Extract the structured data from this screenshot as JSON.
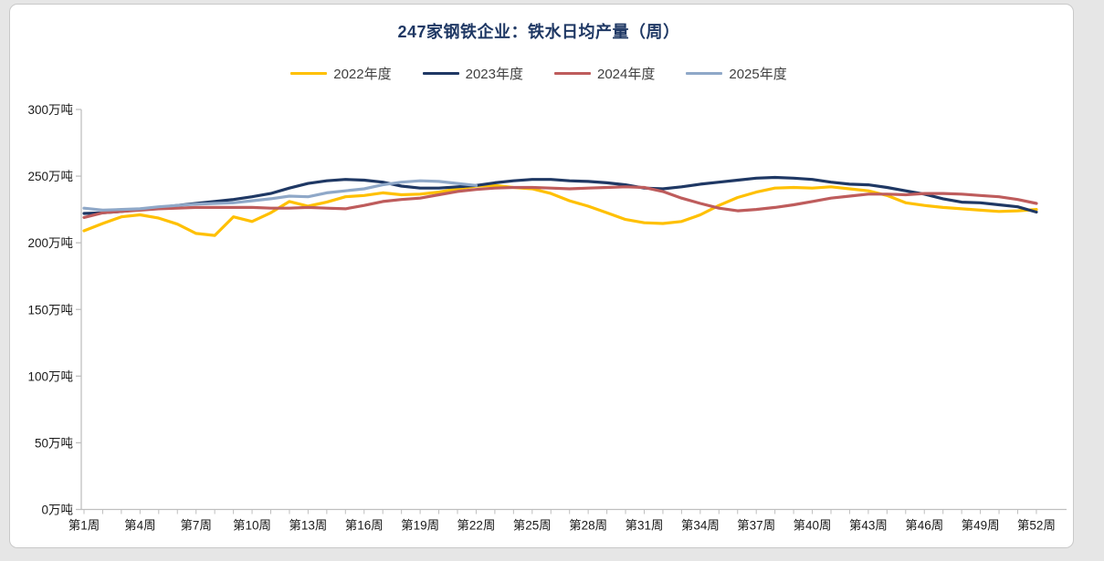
{
  "chart_data": {
    "type": "line",
    "title": "247家钢铁企业：铁水日均产量（周）",
    "grid": false,
    "legend_position": "top",
    "x_axis": {
      "unit": "周",
      "weeks_start": 1,
      "weeks_end": 52,
      "label_every": 3,
      "tick_labels": [
        "第1周",
        "第4周",
        "第7周",
        "第10周",
        "第13周",
        "第16周",
        "第19周",
        "第22周",
        "第25周",
        "第28周",
        "第31周",
        "第34周",
        "第37周",
        "第40周",
        "第43周",
        "第46周",
        "第49周",
        "第52周"
      ]
    },
    "y_axis": {
      "min": 0,
      "max": 300,
      "step": 50,
      "unit": "万吨",
      "tick_labels": [
        "0万吨",
        "50万吨",
        "100万吨",
        "150万吨",
        "200万吨",
        "250万吨",
        "300万吨"
      ]
    },
    "axis_color": "#bfbfbf",
    "label_color": "#1a1a1a",
    "title_color": "#1F3864",
    "series": [
      {
        "name": "2022年度",
        "color": "#FFC000",
        "values": [
          209,
          214.5,
          219.5,
          221,
          218.5,
          214,
          207,
          205.5,
          219.5,
          216,
          222.5,
          231,
          227.5,
          230.5,
          234.5,
          235.5,
          237.5,
          236,
          236.5,
          238,
          240.5,
          242.5,
          243,
          241.5,
          240.5,
          237,
          231.5,
          227.5,
          222.5,
          217.5,
          215,
          214.5,
          216,
          221,
          228,
          234,
          238,
          241,
          241.5,
          241,
          242,
          240.5,
          239,
          235.5,
          230,
          228,
          226.5,
          225.5,
          224.5,
          223.5,
          224,
          225
        ]
      },
      {
        "name": "2023年度",
        "color": "#1F3864",
        "values": [
          222,
          222.5,
          223.5,
          225,
          226.5,
          228,
          229.5,
          231,
          232.5,
          234.5,
          237,
          241,
          244.5,
          246.5,
          247.5,
          247,
          245.5,
          242.5,
          241,
          241,
          242,
          243,
          245,
          246.5,
          247.5,
          247.5,
          246.5,
          246,
          245,
          243.5,
          241,
          240.5,
          242,
          244,
          245.5,
          247,
          248.5,
          249,
          248.5,
          247.5,
          245.5,
          244,
          243.5,
          241.5,
          239,
          236.5,
          233,
          230.5,
          230,
          228.5,
          227,
          223
        ]
      },
      {
        "name": "2024年度",
        "color": "#BE5C5C",
        "values": [
          219,
          222.5,
          223.5,
          224.5,
          225.5,
          226,
          226.5,
          226.5,
          226.5,
          226.5,
          226,
          226,
          226.5,
          226,
          225.5,
          228,
          231,
          232.5,
          233.5,
          236,
          238.5,
          240,
          241,
          241.5,
          241.5,
          241,
          240.5,
          241,
          241.5,
          242,
          241.5,
          238.5,
          233.5,
          229.5,
          226,
          224,
          225,
          226.5,
          228.5,
          231,
          233.5,
          235,
          236.5,
          236.5,
          236,
          237,
          237,
          236.5,
          235.5,
          234.5,
          232.5,
          229.5
        ]
      },
      {
        "name": "2025年度",
        "color": "#8FA8C8",
        "values": [
          226,
          224.5,
          225,
          225.5,
          227,
          228,
          229,
          229.5,
          230,
          231.5,
          233,
          235,
          234.5,
          237.5,
          239,
          240.5,
          243.5,
          245.5,
          246.5,
          246,
          244.5,
          243
        ]
      }
    ]
  }
}
